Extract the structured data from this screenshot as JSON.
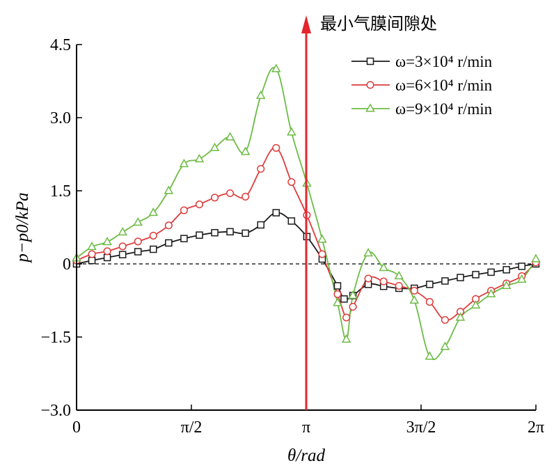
{
  "chart_data": {
    "type": "line",
    "xlabel": "θ/rad",
    "ylabel": "p−p0/kPa",
    "xlim": [
      0,
      6.2832
    ],
    "ylim": [
      -3.0,
      4.5
    ],
    "x_ticks": [
      {
        "value": 0,
        "label": "0"
      },
      {
        "value": 1.5708,
        "label": "π/2"
      },
      {
        "value": 3.1416,
        "label": "π"
      },
      {
        "value": 4.7124,
        "label": "3π/2"
      },
      {
        "value": 6.2832,
        "label": "2π"
      }
    ],
    "y_ticks": [
      {
        "value": 4.5,
        "label": "4.5"
      },
      {
        "value": 3.0,
        "label": "3.0"
      },
      {
        "value": 1.5,
        "label": "1.5"
      },
      {
        "value": 0,
        "label": "0"
      },
      {
        "value": -1.5,
        "label": "−1.5"
      },
      {
        "value": -3.0,
        "label": "−3.0"
      }
    ],
    "zero_line": true,
    "legend_position": "top-right",
    "annotation": {
      "text": "最小气膜间隙处",
      "x": 3.1416
    },
    "series": [
      {
        "name": "ω=3×10⁴ r/min",
        "color": "#1a1a1a",
        "marker": "square",
        "x": [
          0,
          0.21,
          0.42,
          0.63,
          0.84,
          1.05,
          1.26,
          1.47,
          1.68,
          1.89,
          2.1,
          2.31,
          2.52,
          2.73,
          2.94,
          3.15,
          3.36,
          3.57,
          3.66,
          3.78,
          3.99,
          4.2,
          4.41,
          4.62,
          4.83,
          5.04,
          5.25,
          5.46,
          5.67,
          5.88,
          6.09,
          6.283
        ],
        "y": [
          0.0,
          0.07,
          0.13,
          0.19,
          0.25,
          0.3,
          0.43,
          0.52,
          0.59,
          0.64,
          0.66,
          0.63,
          0.8,
          1.05,
          0.88,
          0.56,
          0.1,
          -0.45,
          -0.72,
          -0.65,
          -0.42,
          -0.46,
          -0.5,
          -0.5,
          -0.42,
          -0.35,
          -0.28,
          -0.22,
          -0.17,
          -0.12,
          -0.05,
          0.0
        ]
      },
      {
        "name": "ω=6×10⁴ r/min",
        "color": "#dd3c3c",
        "marker": "circle",
        "x": [
          0,
          0.21,
          0.42,
          0.63,
          0.84,
          1.05,
          1.26,
          1.47,
          1.68,
          1.89,
          2.1,
          2.31,
          2.52,
          2.73,
          2.94,
          3.15,
          3.36,
          3.57,
          3.69,
          3.78,
          3.99,
          4.2,
          4.41,
          4.62,
          4.83,
          5.04,
          5.25,
          5.46,
          5.67,
          5.88,
          6.09,
          6.283
        ],
        "y": [
          0.07,
          0.2,
          0.26,
          0.36,
          0.46,
          0.58,
          0.79,
          1.1,
          1.22,
          1.36,
          1.45,
          1.38,
          1.95,
          2.38,
          1.68,
          1.0,
          0.2,
          -0.62,
          -1.1,
          -0.88,
          -0.3,
          -0.36,
          -0.45,
          -0.55,
          -0.78,
          -1.15,
          -0.98,
          -0.72,
          -0.55,
          -0.4,
          -0.25,
          0.03
        ]
      },
      {
        "name": "ω=9×10⁴ r/min",
        "color": "#6dbb45",
        "marker": "triangle",
        "x": [
          0,
          0.21,
          0.42,
          0.63,
          0.84,
          1.05,
          1.26,
          1.47,
          1.68,
          1.89,
          2.1,
          2.31,
          2.52,
          2.73,
          2.94,
          3.15,
          3.36,
          3.57,
          3.69,
          3.78,
          3.99,
          4.2,
          4.41,
          4.62,
          4.83,
          5.04,
          5.25,
          5.46,
          5.67,
          5.88,
          6.09,
          6.283
        ],
        "y": [
          0.12,
          0.35,
          0.45,
          0.65,
          0.85,
          1.05,
          1.5,
          2.05,
          2.15,
          2.38,
          2.6,
          2.3,
          3.45,
          4.0,
          2.7,
          1.65,
          0.5,
          -0.8,
          -1.55,
          -0.65,
          0.22,
          -0.08,
          -0.25,
          -0.75,
          -1.9,
          -1.7,
          -1.1,
          -0.85,
          -0.62,
          -0.45,
          -0.32,
          0.1
        ]
      }
    ]
  }
}
